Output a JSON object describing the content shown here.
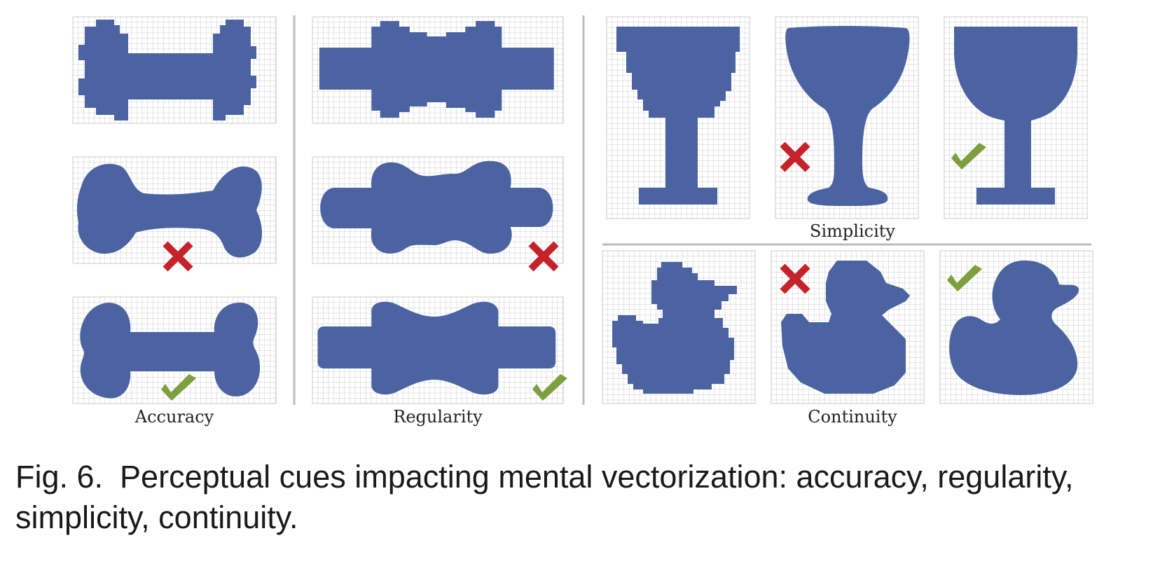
{
  "colors": {
    "shape_fill": "#4b63a0",
    "grid_line": "#c9cdc7",
    "panel_background": "#ffffff",
    "separator": "#bdbdb8",
    "cross_mark": "#c4232b",
    "check_mark": "#7e9f3f"
  },
  "labels": {
    "accuracy": "Accuracy",
    "regularity": "Regularity",
    "simplicity": "Simplicity",
    "continuity": "Continuity"
  },
  "icons": {
    "cross": "cross-icon",
    "check": "check-icon"
  },
  "caption": {
    "label": "Fig. 6.",
    "text": "Perceptual cues impacting mental vectorization: accuracy, regularity, simplicity, continuity."
  }
}
